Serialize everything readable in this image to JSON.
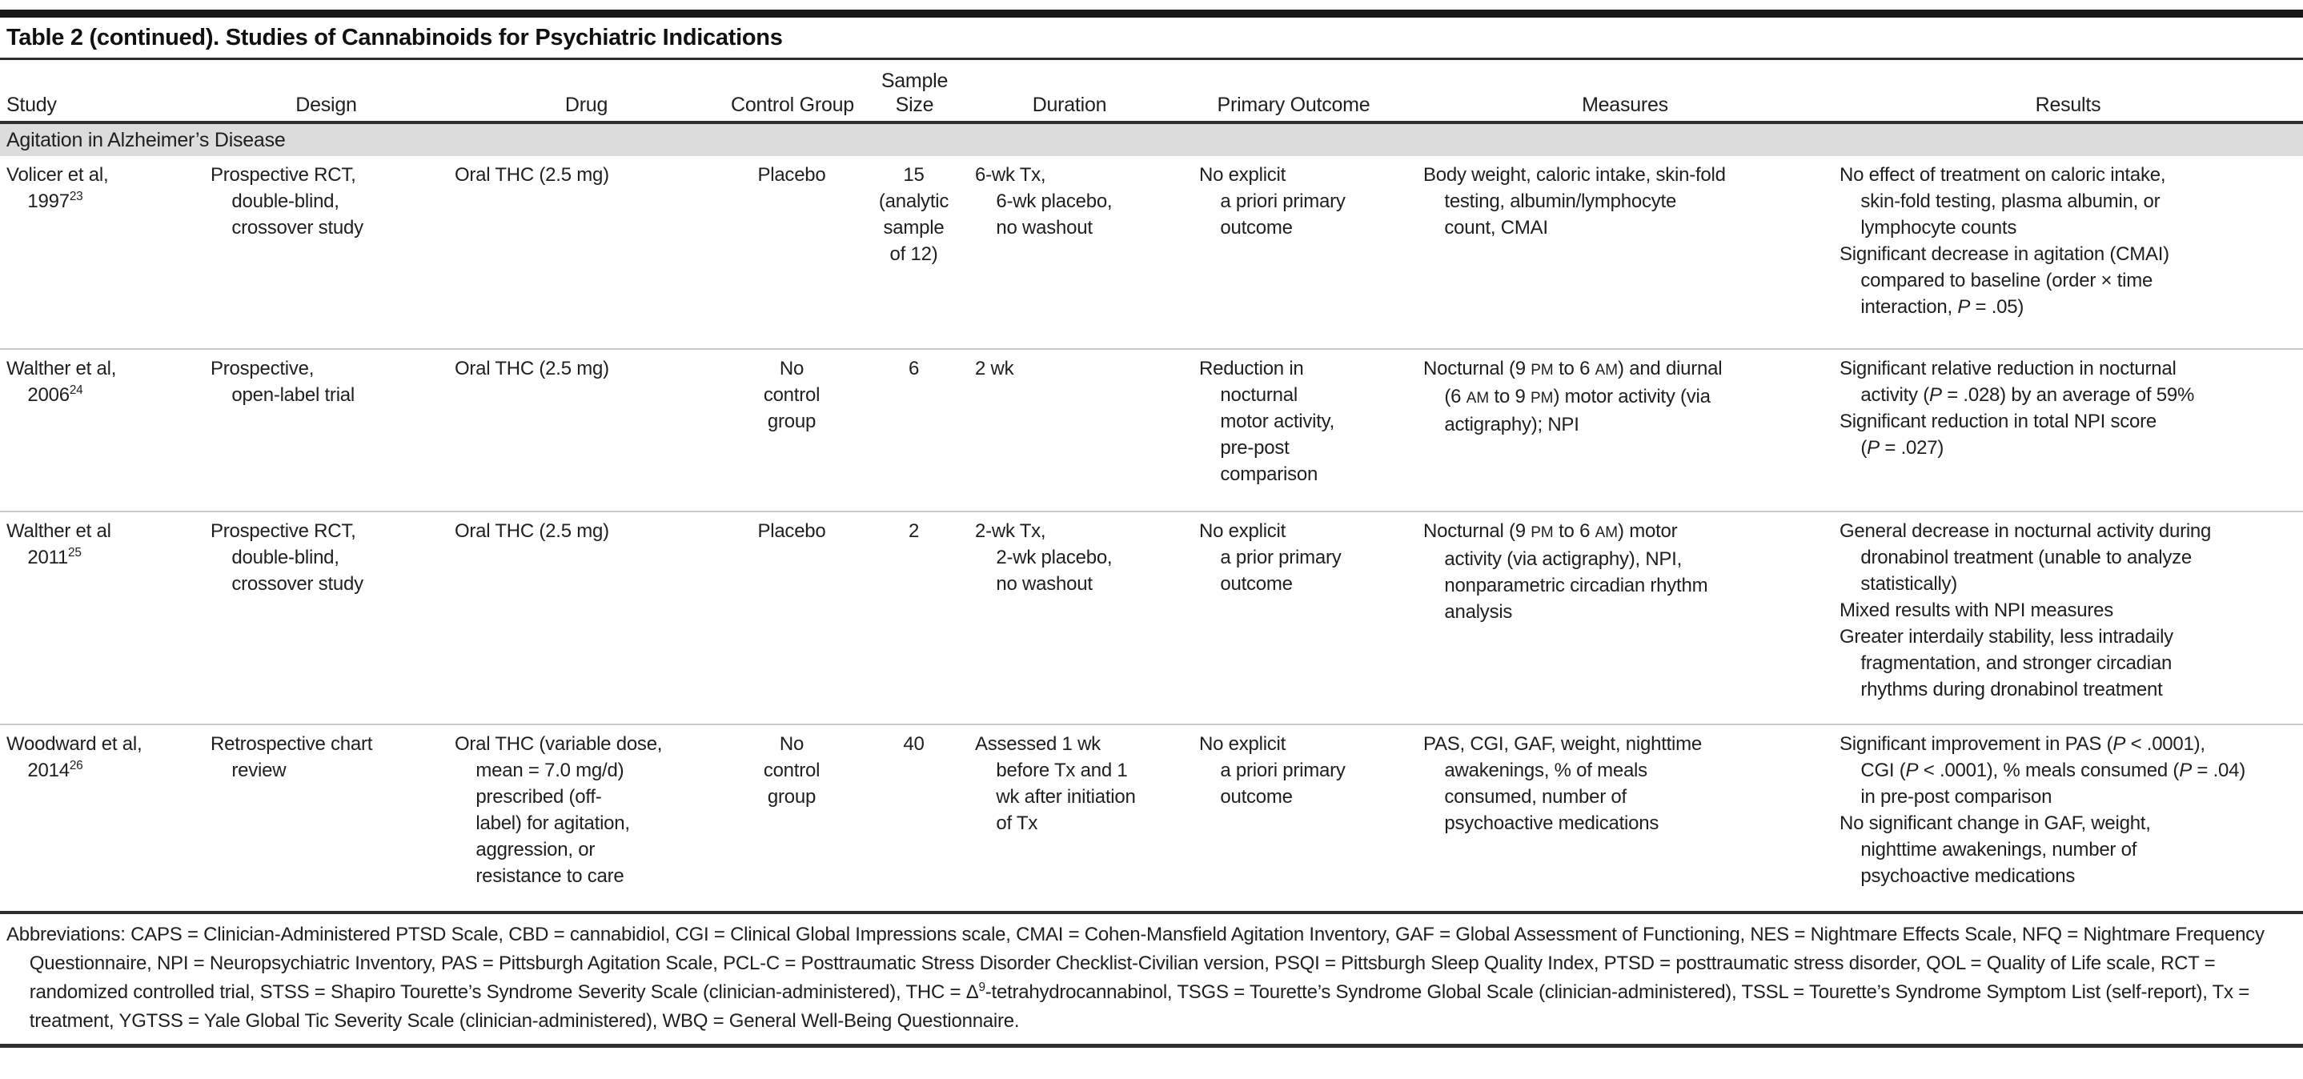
{
  "title": "Table 2 (continued). Studies of Cannabinoids for Psychiatric Indications",
  "header": {
    "columns": [
      "Study",
      "Design",
      "Drug",
      "Control Group",
      "Sample Size",
      "Duration",
      "Primary Outcome",
      "Measures",
      "Results"
    ]
  },
  "section": "Agitation in Alzheimer’s Disease",
  "rows": [
    {
      "study": "Volicer et al,\n1997^23",
      "design": "Prospective RCT,\ndouble-blind,\ncrossover study",
      "drug": "Oral THC (2.5 mg)",
      "control": "Placebo",
      "sample": "15\n(analytic\nsample\nof 12)",
      "duration": "6-wk Tx,\n6-wk placebo,\nno washout",
      "primary": "No explicit\na priori primary\noutcome",
      "measures": "Body weight, caloric intake, skin-fold\ntesting, albumin/lymphocyte\ncount, CMAI",
      "results": [
        "No effect of treatment on caloric intake,\nskin-fold testing, plasma albumin, or\nlymphocyte counts",
        "Significant decrease in agitation (CMAI)\ncompared to baseline (order × time\ninteraction, P = .05)"
      ]
    },
    {
      "study": "Walther et al,\n2006^24",
      "design": "Prospective,\nopen-label trial",
      "drug": "Oral THC (2.5 mg)",
      "control": "No\ncontrol\ngroup",
      "sample": "6",
      "duration": "2 wk",
      "primary": "Reduction in\nnocturnal\nmotor activity,\npre-post\ncomparison",
      "measures": "Nocturnal (9 PM to 6 AM) and diurnal\n(6 AM to 9 PM) motor activity (via\nactigraphy); NPI",
      "results": [
        "Significant relative reduction in nocturnal\nactivity (P = .028) by an average of 59%",
        "Significant reduction in total NPI score\n(P = .027)"
      ]
    },
    {
      "study": "Walther et al\n2011^25",
      "design": "Prospective RCT,\ndouble-blind,\ncrossover study",
      "drug": "Oral THC (2.5 mg)",
      "control": "Placebo",
      "sample": "2",
      "duration": "2-wk Tx,\n2-wk placebo,\nno washout",
      "primary": "No explicit\na prior primary\noutcome",
      "measures": "Nocturnal (9 PM to 6 AM) motor\nactivity (via actigraphy), NPI,\nnonparametric circadian rhythm\nanalysis",
      "results": [
        "General decrease in nocturnal activity during\ndronabinol treatment (unable to analyze\nstatistically)",
        "Mixed results with NPI measures",
        "Greater interdaily stability, less intradaily\nfragmentation, and stronger circadian\nrhythms during dronabinol treatment"
      ]
    },
    {
      "study": "Woodward et al,\n2014^26",
      "design": "Retrospective chart\nreview",
      "drug": "Oral THC (variable dose,\nmean = 7.0 mg/d)\nprescribed (off-\nlabel) for agitation,\naggression, or\nresistance to care",
      "control": "No\ncontrol\ngroup",
      "sample": "40",
      "duration": "Assessed 1 wk\nbefore Tx and 1\nwk after initiation\nof Tx",
      "primary": "No explicit\na priori primary\noutcome",
      "measures": "PAS, CGI, GAF, weight, nighttime\nawakenings, % of meals\nconsumed, number of\npsychoactive medications",
      "results": [
        "Significant improvement in PAS (P < .0001),\nCGI (P < .0001), % meals consumed (P = .04)\nin pre-post comparison",
        "No significant change in GAF, weight,\nnighttime awakenings, number of\npsychoactive medications"
      ]
    }
  ],
  "footnote": "Abbreviations: CAPS = Clinician-Administered PTSD Scale, CBD = cannabidiol, CGI = Clinical Global Impressions scale, CMAI = Cohen-Mansfield Agitation Inventory, GAF = Global Assessment of Functioning, NES = Nightmare Effects Scale, NFQ = Nightmare Frequency Questionnaire, NPI = Neuropsychiatric Inventory, PAS = Pittsburgh Agitation Scale, PCL-C = Posttraumatic Stress Disorder Checklist-Civilian version, PSQI = Pittsburgh Sleep Quality Index, PTSD = posttraumatic stress disorder, QOL = Quality of Life scale, RCT = randomized controlled trial, STSS = Shapiro Tourette’s Syndrome Severity Scale (clinician-administered), THC = Δ^9-tetrahydrocannabinol, TSGS = Tourette’s Syndrome Global Scale (clinician-administered), TSSL = Tourette’s Syndrome Symptom List (self-report), Tx = treatment, YGTSS = Yale Global Tic Severity Scale (clinician-administered), WBQ = General Well-Being Questionnaire."
}
